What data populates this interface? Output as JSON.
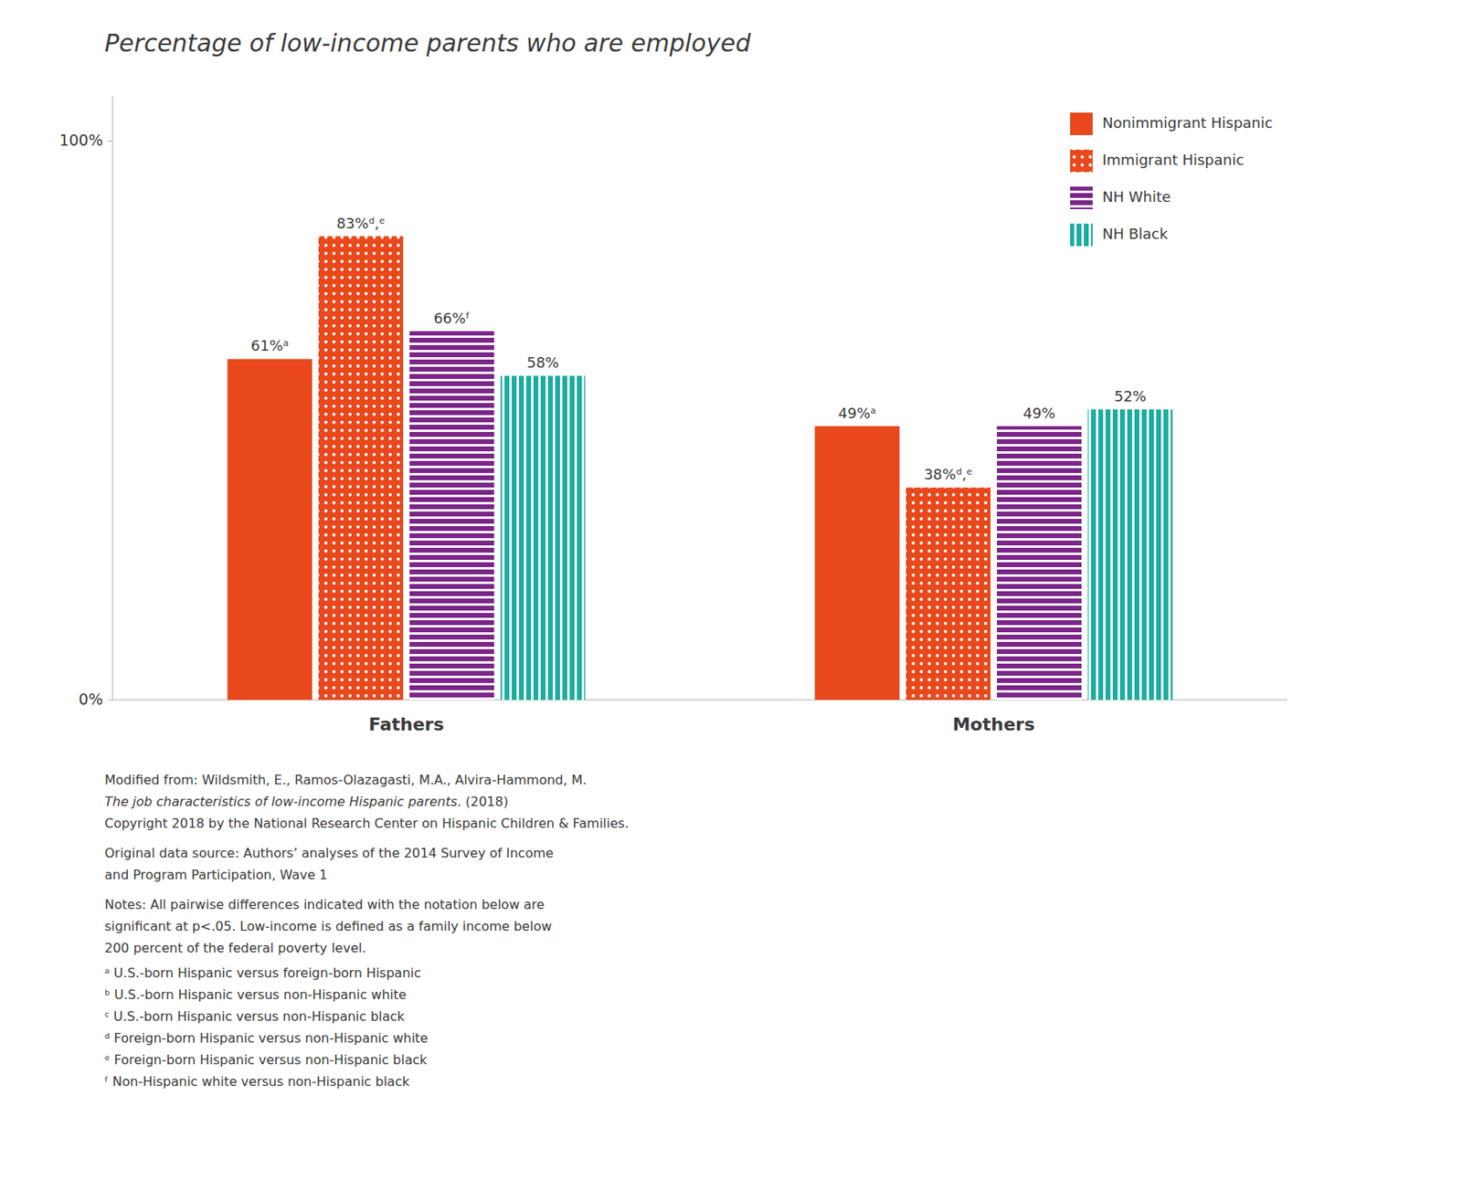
{
  "chart_data": {
    "type": "bar",
    "title": "Percentage of low-income parents who are employed",
    "categories": [
      "Fathers",
      "Mothers"
    ],
    "series": [
      {
        "name": "Nonimmigrant Hispanic",
        "color": "#E8481C",
        "values": [
          61,
          49
        ],
        "value_labels": [
          "61%ᵃ",
          "49%ᵃ"
        ]
      },
      {
        "name": "Immigrant Hispanic",
        "color": "#E8481C",
        "values": [
          83,
          38
        ],
        "value_labels": [
          "83%ᵈ,ᵉ",
          "38%ᵈ,ᵉ"
        ]
      },
      {
        "name": "NH White",
        "color": "#7B2589",
        "values": [
          66,
          49
        ],
        "value_labels": [
          "66%ᶠ",
          "49%"
        ]
      },
      {
        "name": "NH Black",
        "color": "#1AADA0",
        "values": [
          58,
          52
        ],
        "value_labels": [
          "58%",
          "52%"
        ]
      }
    ],
    "ylim": [
      0,
      108
    ],
    "yticks": [
      {
        "value": 0,
        "label": "0%"
      },
      {
        "value": 100,
        "label": "100%"
      }
    ],
    "grid": false,
    "legend": "upper right",
    "data_labels": true,
    "annotations": [
      [
        "Modified from: Wildsmith, E., Ramos-Olazagasti, M.A., Alvira-Hammond, M."
      ],
      [
        "The job characteristics of low-income Hispanic parents",
        ". (2018)"
      ],
      [
        "Copyright 2018 by the National Research Center on Hispanic Children & Families."
      ],
      [
        "Original data source: Authors’ analyses of the 2014 Survey of Income"
      ],
      [
        "and Program Participation, Wave 1"
      ],
      [
        "Notes: All pairwise differences indicated with the notation below are"
      ],
      [
        "significant at p<.05. Low-income is defined as a family income below"
      ],
      [
        "200 percent of the federal poverty level."
      ],
      [
        "ᵃ U.S.-born Hispanic versus foreign-born Hispanic"
      ],
      [
        "ᵇ U.S.-born Hispanic versus non-Hispanic white"
      ],
      [
        "ᶜ U.S.-born Hispanic versus non-Hispanic black"
      ],
      [
        "ᵈ Foreign-born Hispanic versus non-Hispanic white"
      ],
      [
        "ᵉ Foreign-born Hispanic versus non-Hispanic black"
      ],
      [
        "ᶠ Non-Hispanic white versus non-Hispanic black"
      ]
    ]
  }
}
